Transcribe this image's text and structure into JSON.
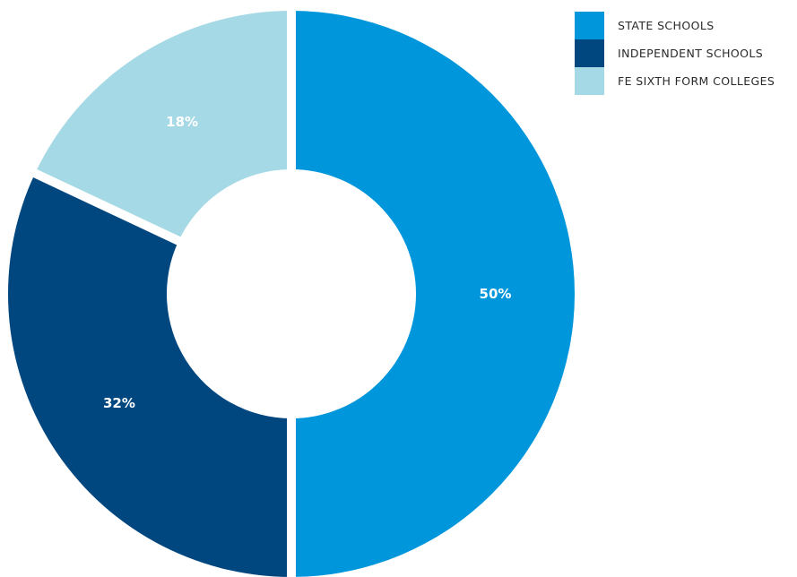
{
  "chart_data": {
    "type": "pie",
    "donut": true,
    "categories": [
      "STATE SCHOOLS",
      "INDEPENDENT SCHOOLS",
      "FE SIXTH FORM COLLEGES"
    ],
    "values": [
      50,
      32,
      18
    ],
    "labels": [
      "50%",
      "32%",
      "18%"
    ],
    "colors": [
      "#0096db",
      "#00467f",
      "#a6d9e6"
    ],
    "legend_position": "top-right",
    "start": "12 o'clock",
    "direction": "clockwise"
  }
}
